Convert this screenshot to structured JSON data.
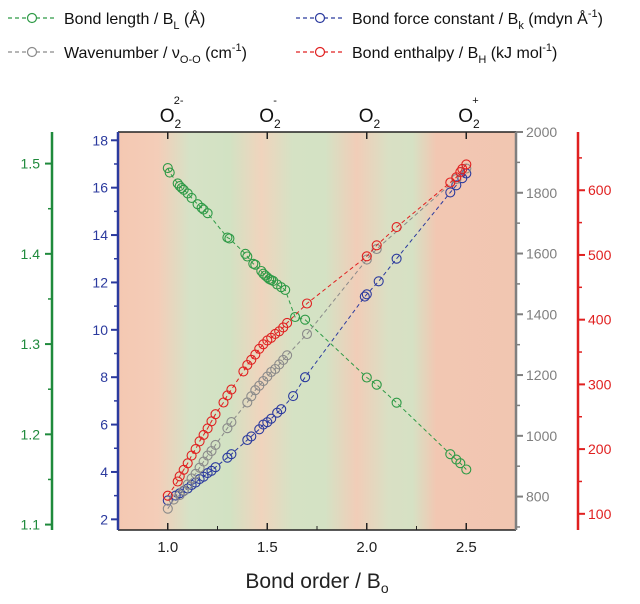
{
  "chart_data": {
    "type": "scatter",
    "x_axis": {
      "label": "Bond order / B",
      "label_sub": "o",
      "range": [
        0.75,
        2.75
      ],
      "ticks": [
        1.0,
        1.5,
        2.0,
        2.5
      ],
      "tick_labels": [
        "1.0",
        "1.5",
        "2.0",
        "2.5"
      ]
    },
    "top_axis": {
      "ticks": [
        1.0,
        1.5,
        2.0,
        2.5
      ],
      "labels": [
        {
          "base": "O",
          "sub": "2",
          "sup": "2-"
        },
        {
          "base": "O",
          "sub": "2",
          "sup": "-"
        },
        {
          "base": "O",
          "sub": "2",
          "sup": ""
        },
        {
          "base": "O",
          "sub": "2",
          "sup": "+"
        }
      ]
    },
    "y_axes": [
      {
        "id": "bl",
        "color": "#1f8a3c",
        "range": [
          1.094,
          1.535
        ],
        "ticks": [
          1.1,
          1.2,
          1.3,
          1.4,
          1.5
        ],
        "tick_labels": [
          "1.1",
          "1.2",
          "1.3",
          "1.4",
          "1.5"
        ]
      },
      {
        "id": "bk",
        "color": "#2b3a9e",
        "range": [
          1.55,
          18.35
        ],
        "ticks": [
          2,
          4,
          6,
          8,
          10,
          12,
          14,
          16,
          18
        ],
        "tick_labels": [
          "2",
          "4",
          "6",
          "8",
          "10",
          "12",
          "14",
          "16",
          "18"
        ]
      },
      {
        "id": "wn",
        "color": "#7f7f7f",
        "range": [
          690,
          2000
        ],
        "ticks": [
          800,
          1000,
          1200,
          1400,
          1600,
          1800,
          2000
        ],
        "tick_labels": [
          "800",
          "1000",
          "1200",
          "1400",
          "1600",
          "1800",
          "2000"
        ]
      },
      {
        "id": "bh",
        "color": "#e02020",
        "range": [
          75,
          690
        ],
        "ticks": [
          100,
          200,
          300,
          400,
          500,
          600
        ],
        "tick_labels": [
          "100",
          "200",
          "300",
          "400",
          "500",
          "600"
        ]
      }
    ],
    "series": [
      {
        "id": "bl",
        "color": "#2e9a46",
        "x": [
          1.0,
          1.01,
          1.05,
          1.06,
          1.07,
          1.08,
          1.1,
          1.12,
          1.15,
          1.17,
          1.18,
          1.2,
          1.3,
          1.31,
          1.39,
          1.4,
          1.43,
          1.44,
          1.47,
          1.48,
          1.49,
          1.5,
          1.51,
          1.52,
          1.53,
          1.55,
          1.57,
          1.59,
          1.64,
          1.69,
          2.0,
          2.05,
          2.15,
          2.42,
          2.45,
          2.47,
          2.5
        ],
        "y": [
          1.495,
          1.49,
          1.478,
          1.475,
          1.473,
          1.471,
          1.467,
          1.462,
          1.455,
          1.451,
          1.449,
          1.445,
          1.418,
          1.417,
          1.4,
          1.397,
          1.389,
          1.388,
          1.381,
          1.378,
          1.376,
          1.374,
          1.372,
          1.371,
          1.37,
          1.366,
          1.363,
          1.36,
          1.33,
          1.327,
          1.263,
          1.255,
          1.235,
          1.178,
          1.172,
          1.168,
          1.161
        ]
      },
      {
        "id": "bk",
        "color": "#2b3a9e",
        "x": [
          1.0,
          1.04,
          1.06,
          1.08,
          1.1,
          1.12,
          1.14,
          1.16,
          1.18,
          1.2,
          1.22,
          1.24,
          1.3,
          1.32,
          1.4,
          1.42,
          1.46,
          1.48,
          1.5,
          1.52,
          1.55,
          1.57,
          1.63,
          1.69,
          1.99,
          2.0,
          2.06,
          2.15,
          2.42,
          2.45,
          2.48,
          2.5
        ],
        "y": [
          2.8,
          3.0,
          3.1,
          3.2,
          3.3,
          3.45,
          3.55,
          3.7,
          3.8,
          3.95,
          4.05,
          4.2,
          4.6,
          4.75,
          5.35,
          5.5,
          5.8,
          6.0,
          6.1,
          6.25,
          6.5,
          6.65,
          7.2,
          8.0,
          11.4,
          11.5,
          12.05,
          13.0,
          15.8,
          16.1,
          16.4,
          16.6
        ]
      },
      {
        "id": "wn",
        "color": "#8a8a8a",
        "x": [
          1.0,
          1.03,
          1.06,
          1.08,
          1.1,
          1.12,
          1.14,
          1.16,
          1.18,
          1.2,
          1.22,
          1.24,
          1.3,
          1.32,
          1.4,
          1.42,
          1.44,
          1.46,
          1.48,
          1.5,
          1.52,
          1.54,
          1.56,
          1.58,
          1.6,
          1.7,
          2.0,
          2.05,
          2.45,
          2.5
        ],
        "y": [
          760,
          790,
          805,
          820,
          840,
          860,
          875,
          895,
          915,
          935,
          950,
          970,
          1025,
          1045,
          1110,
          1130,
          1150,
          1165,
          1180,
          1195,
          1210,
          1220,
          1235,
          1250,
          1265,
          1335,
          1580,
          1615,
          1845,
          1880
        ]
      },
      {
        "id": "bh",
        "color": "#e02020",
        "x": [
          1.0,
          1.05,
          1.06,
          1.08,
          1.1,
          1.12,
          1.14,
          1.16,
          1.18,
          1.2,
          1.22,
          1.24,
          1.28,
          1.3,
          1.32,
          1.38,
          1.4,
          1.42,
          1.44,
          1.46,
          1.48,
          1.5,
          1.52,
          1.54,
          1.56,
          1.58,
          1.6,
          1.7,
          2.0,
          2.05,
          2.15,
          2.42,
          2.45,
          2.47,
          2.48,
          2.5
        ],
        "y": [
          128,
          150,
          158,
          168,
          178,
          190,
          200,
          212,
          222,
          232,
          243,
          254,
          272,
          283,
          292,
          320,
          330,
          338,
          346,
          355,
          362,
          368,
          372,
          378,
          382,
          388,
          395,
          425,
          498,
          515,
          543,
          612,
          620,
          628,
          633,
          640
        ]
      }
    ],
    "legend": [
      {
        "id": "bl",
        "color": "#2e9a46",
        "label": "Bond length / B",
        "sub": "L",
        "unit": " (Å)"
      },
      {
        "id": "bk",
        "color": "#2b3a9e",
        "label": "Bond force constant / B",
        "sub": "k",
        "unit": " (mdyn Å",
        "unit_sup": "-1",
        "unit_end": ")"
      },
      {
        "id": "wn",
        "color": "#8a8a8a",
        "label": "Wavenumber / ν",
        "sub": "O-O",
        "unit": " (cm",
        "unit_sup": "-1",
        "unit_end": ")"
      },
      {
        "id": "bh",
        "color": "#e02020",
        "label": "Bond enthalpy / B",
        "sub": "H",
        "unit": " (kJ mol",
        "unit_sup": "-1",
        "unit_end": ")"
      }
    ],
    "legend_placement": "top",
    "grid": false
  }
}
